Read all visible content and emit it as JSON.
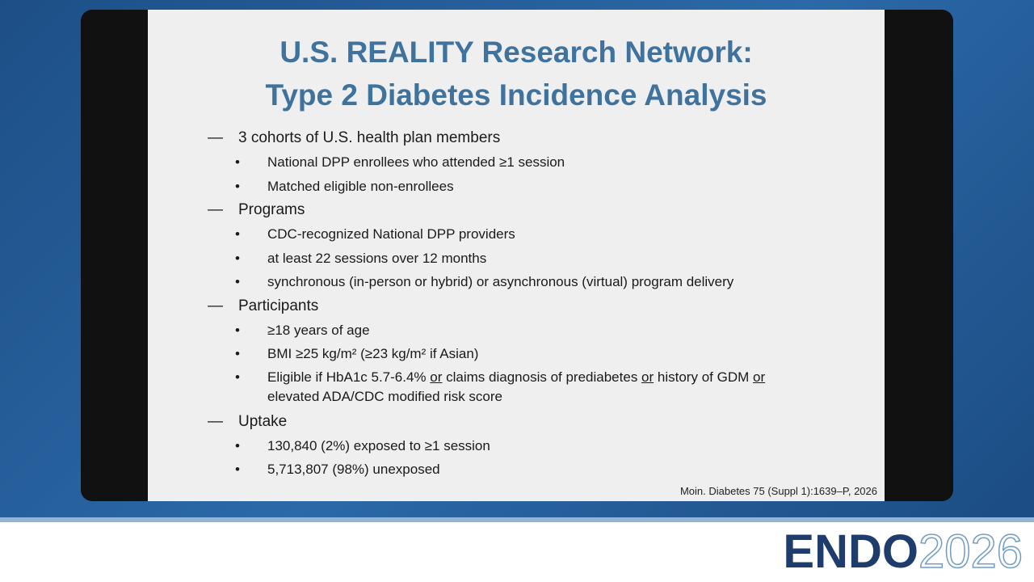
{
  "slide": {
    "title": [
      "U.S. REALITY Research Network:",
      "Type 2 Diabetes Incidence Analysis"
    ],
    "heading_marker": "—",
    "bullet_marker": "•",
    "sections": [
      {
        "heading": "3 cohorts of U.S. health plan members",
        "bullets": [
          "National DPP enrollees who attended ≥1 session",
          "Matched eligible non-enrollees"
        ]
      },
      {
        "heading": "Programs",
        "bullets": [
          "CDC-recognized National DPP providers",
          "at least 22 sessions over 12 months",
          "synchronous (in-person or hybrid) or asynchronous (virtual) program delivery"
        ]
      },
      {
        "heading": "Participants",
        "bullets": [
          "≥18 years of age",
          "BMI ≥25 kg/m² (≥23 kg/m² if Asian)",
          {
            "runs": [
              {
                "text": "Eligible if HbA1c 5.7-6.4% "
              },
              {
                "text": "or",
                "underline": true
              },
              {
                "text": " claims diagnosis of prediabetes "
              },
              {
                "text": "or",
                "underline": true
              },
              {
                "text": " history of GDM "
              },
              {
                "text": "or",
                "underline": true
              },
              {
                "text": " elevated ADA/CDC modified risk score"
              }
            ]
          }
        ]
      },
      {
        "heading": "Uptake",
        "bullets": [
          "130,840 (2%) exposed to ≥1 session",
          "5,713,807 (98%) unexposed"
        ]
      }
    ],
    "citation": "Moin. Diabetes 75 (Suppl 1):1639–P, 2026"
  },
  "logo": {
    "name": "ENDO",
    "year": "2026"
  }
}
